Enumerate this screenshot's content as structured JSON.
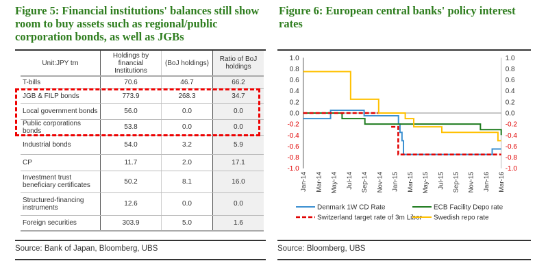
{
  "left": {
    "title": "Figure 5: Financial institutions' balances still show room to buy assets such as regional/public corporation bonds, as well as JGBs",
    "table": {
      "headers": [
        "Unit:JPY trn",
        "Holdings by financial Institutions",
        "(BoJ holdings)",
        "Ratio of BoJ holdings"
      ],
      "rows": [
        [
          "T-bills",
          "70.6",
          "46.7",
          "66.2"
        ],
        [
          "JGB & FILP bonds",
          "773.9",
          "268.3",
          "34.7"
        ],
        [
          "Local government bonds",
          "56.0",
          "0.0",
          "0.0"
        ],
        [
          "Public corporations bonds",
          "53.8",
          "0.0",
          "0.0"
        ],
        [
          "Industrial bonds",
          "54.0",
          "3.2",
          "5.9"
        ],
        [
          "CP",
          "11.7",
          "2.0",
          "17.1"
        ],
        [
          "Investment trust beneficiary certificates",
          "50.2",
          "8.1",
          "16.0"
        ],
        [
          "Structured-financing instruments",
          "12.6",
          "0.0",
          "0.0"
        ],
        [
          "Foreign securities",
          "303.9",
          "5.0",
          "1.6"
        ]
      ],
      "highlighted_rows": [
        "JGB & FILP bonds",
        "Local government bonds",
        "Public corporations bonds"
      ],
      "highlight_color": "#e00000"
    },
    "source": "Source: Bank of Japan, Bloomberg, UBS"
  },
  "right": {
    "title": "Figure 6: European central banks' policy interest rates",
    "source": "Source: Bloomberg, UBS"
  },
  "chart_data": {
    "type": "line",
    "step": true,
    "title": "Figure 6: European central banks' policy interest rates",
    "ylim": [
      -1.0,
      1.0
    ],
    "yticks": [
      "1.0",
      "0.8",
      "0.6",
      "0.4",
      "0.2",
      "0.0",
      "-0.2",
      "-0.4",
      "-0.6",
      "-0.8",
      "-1.0"
    ],
    "dual_y_axis": true,
    "negative_tick_color": "#e00000",
    "xlim": [
      "2014-01",
      "2016-03"
    ],
    "xticks": [
      "Jan-14",
      "Mar-14",
      "May-14",
      "Jul-14",
      "Sep-14",
      "Nov-14",
      "Jan-15",
      "Mar-15",
      "May-15",
      "Jul-15",
      "Sep-15",
      "Nov-15",
      "Jan-16",
      "Mar-16"
    ],
    "grid": false,
    "legend": "bottom",
    "series": [
      {
        "name": "Denmark 1W CD Rate",
        "color": "#3a8fd0",
        "dash": false,
        "points": [
          [
            "2014-01-01",
            -0.1
          ],
          [
            "2014-04-20",
            0.05
          ],
          [
            "2014-09-01",
            -0.05
          ],
          [
            "2015-01-16",
            -0.2
          ],
          [
            "2015-01-22",
            -0.35
          ],
          [
            "2015-01-30",
            -0.5
          ],
          [
            "2015-02-05",
            -0.75
          ],
          [
            "2016-01-25",
            -0.65
          ],
          [
            "2016-03-31",
            -0.65
          ]
        ]
      },
      {
        "name": "ECB Facility Depo rate",
        "color": "#1e7b1e",
        "dash": false,
        "points": [
          [
            "2014-01-01",
            0.0
          ],
          [
            "2014-06-05",
            -0.1
          ],
          [
            "2014-09-04",
            -0.2
          ],
          [
            "2015-12-09",
            -0.3
          ],
          [
            "2016-03-16",
            -0.4
          ],
          [
            "2016-03-31",
            -0.4
          ]
        ]
      },
      {
        "name": "Switzerland target rate of 3m Libor",
        "color": "#e00000",
        "dash": true,
        "points": [
          [
            "2014-01-01",
            0.0
          ],
          [
            "2014-11-01",
            0.0
          ]
        ],
        "points2": [
          [
            "2014-12-18",
            -0.25
          ],
          [
            "2015-01-15",
            -0.75
          ],
          [
            "2016-03-31",
            -0.75
          ]
        ]
      },
      {
        "name": "Swedish repo rate",
        "color": "#ffc000",
        "dash": false,
        "points": [
          [
            "2014-01-01",
            0.75
          ],
          [
            "2014-07-09",
            0.25
          ],
          [
            "2014-10-29",
            0.0
          ],
          [
            "2015-02-12",
            -0.1
          ],
          [
            "2015-03-18",
            -0.25
          ],
          [
            "2015-07-08",
            -0.35
          ],
          [
            "2016-02-17",
            -0.5
          ],
          [
            "2016-03-31",
            -0.5
          ]
        ]
      }
    ]
  }
}
